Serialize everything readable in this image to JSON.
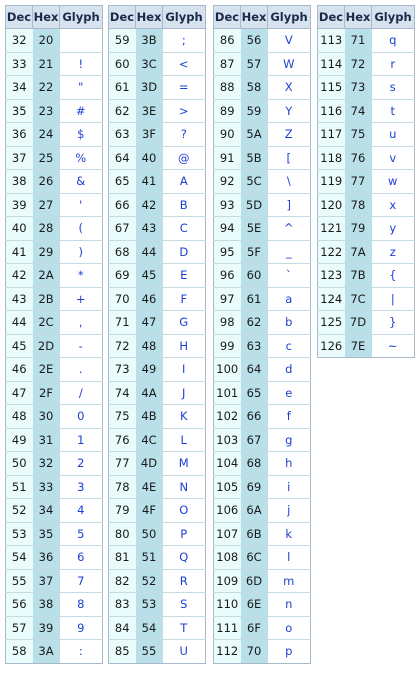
{
  "headers": {
    "dec": "Dec",
    "hex": "Hex",
    "glyph": "Glyph"
  },
  "tables": [
    {
      "rows": [
        [
          "32",
          "20",
          ""
        ],
        [
          "33",
          "21",
          "!"
        ],
        [
          "34",
          "22",
          "\""
        ],
        [
          "35",
          "23",
          "#"
        ],
        [
          "36",
          "24",
          "$"
        ],
        [
          "37",
          "25",
          "%"
        ],
        [
          "38",
          "26",
          "&"
        ],
        [
          "39",
          "27",
          "'"
        ],
        [
          "40",
          "28",
          "("
        ],
        [
          "41",
          "29",
          ")"
        ],
        [
          "42",
          "2A",
          "*"
        ],
        [
          "43",
          "2B",
          "+"
        ],
        [
          "44",
          "2C",
          ","
        ],
        [
          "45",
          "2D",
          "-"
        ],
        [
          "46",
          "2E",
          "."
        ],
        [
          "47",
          "2F",
          "/"
        ],
        [
          "48",
          "30",
          "0"
        ],
        [
          "49",
          "31",
          "1"
        ],
        [
          "50",
          "32",
          "2"
        ],
        [
          "51",
          "33",
          "3"
        ],
        [
          "52",
          "34",
          "4"
        ],
        [
          "53",
          "35",
          "5"
        ],
        [
          "54",
          "36",
          "6"
        ],
        [
          "55",
          "37",
          "7"
        ],
        [
          "56",
          "38",
          "8"
        ],
        [
          "57",
          "39",
          "9"
        ],
        [
          "58",
          "3A",
          ":"
        ]
      ]
    },
    {
      "rows": [
        [
          "59",
          "3B",
          ";"
        ],
        [
          "60",
          "3C",
          "<"
        ],
        [
          "61",
          "3D",
          "="
        ],
        [
          "62",
          "3E",
          ">"
        ],
        [
          "63",
          "3F",
          "?"
        ],
        [
          "64",
          "40",
          "@"
        ],
        [
          "65",
          "41",
          "A"
        ],
        [
          "66",
          "42",
          "B"
        ],
        [
          "67",
          "43",
          "C"
        ],
        [
          "68",
          "44",
          "D"
        ],
        [
          "69",
          "45",
          "E"
        ],
        [
          "70",
          "46",
          "F"
        ],
        [
          "71",
          "47",
          "G"
        ],
        [
          "72",
          "48",
          "H"
        ],
        [
          "73",
          "49",
          "I"
        ],
        [
          "74",
          "4A",
          "J"
        ],
        [
          "75",
          "4B",
          "K"
        ],
        [
          "76",
          "4C",
          "L"
        ],
        [
          "77",
          "4D",
          "M"
        ],
        [
          "78",
          "4E",
          "N"
        ],
        [
          "79",
          "4F",
          "O"
        ],
        [
          "80",
          "50",
          "P"
        ],
        [
          "81",
          "51",
          "Q"
        ],
        [
          "82",
          "52",
          "R"
        ],
        [
          "83",
          "53",
          "S"
        ],
        [
          "84",
          "54",
          "T"
        ],
        [
          "85",
          "55",
          "U"
        ]
      ]
    },
    {
      "rows": [
        [
          "86",
          "56",
          "V"
        ],
        [
          "87",
          "57",
          "W"
        ],
        [
          "88",
          "58",
          "X"
        ],
        [
          "89",
          "59",
          "Y"
        ],
        [
          "90",
          "5A",
          "Z"
        ],
        [
          "91",
          "5B",
          "["
        ],
        [
          "92",
          "5C",
          "\\"
        ],
        [
          "93",
          "5D",
          "]"
        ],
        [
          "94",
          "5E",
          "^"
        ],
        [
          "95",
          "5F",
          "_"
        ],
        [
          "96",
          "60",
          "`"
        ],
        [
          "97",
          "61",
          "a"
        ],
        [
          "98",
          "62",
          "b"
        ],
        [
          "99",
          "63",
          "c"
        ],
        [
          "100",
          "64",
          "d"
        ],
        [
          "101",
          "65",
          "e"
        ],
        [
          "102",
          "66",
          "f"
        ],
        [
          "103",
          "67",
          "g"
        ],
        [
          "104",
          "68",
          "h"
        ],
        [
          "105",
          "69",
          "i"
        ],
        [
          "106",
          "6A",
          "j"
        ],
        [
          "107",
          "6B",
          "k"
        ],
        [
          "108",
          "6C",
          "l"
        ],
        [
          "109",
          "6D",
          "m"
        ],
        [
          "110",
          "6E",
          "n"
        ],
        [
          "111",
          "6F",
          "o"
        ],
        [
          "112",
          "70",
          "p"
        ]
      ]
    },
    {
      "rows": [
        [
          "113",
          "71",
          "q"
        ],
        [
          "114",
          "72",
          "r"
        ],
        [
          "115",
          "73",
          "s"
        ],
        [
          "116",
          "74",
          "t"
        ],
        [
          "117",
          "75",
          "u"
        ],
        [
          "118",
          "76",
          "v"
        ],
        [
          "119",
          "77",
          "w"
        ],
        [
          "120",
          "78",
          "x"
        ],
        [
          "121",
          "79",
          "y"
        ],
        [
          "122",
          "7A",
          "z"
        ],
        [
          "123",
          "7B",
          "{"
        ],
        [
          "124",
          "7C",
          "|"
        ],
        [
          "125",
          "7D",
          "}"
        ],
        [
          "126",
          "7E",
          "~"
        ]
      ]
    }
  ]
}
